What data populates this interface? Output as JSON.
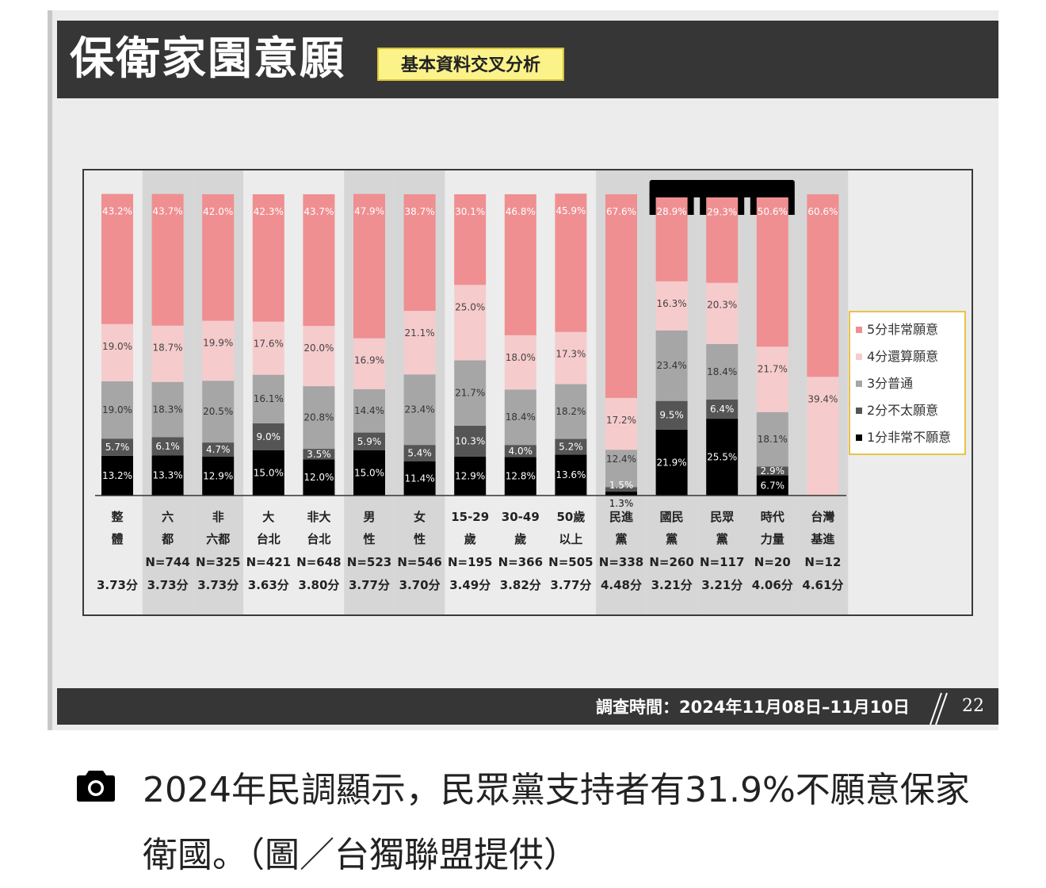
{
  "slide": {
    "title": "保衛家園意願",
    "subtitle": "基本資料交叉分析",
    "footer_text": "調查時間：2024年11月08日–11月10日",
    "page_number": "22"
  },
  "caption": {
    "text": "2024年民調顯示，民眾黨支持者有31.9%不願意保家衛國。（圖／台獨聯盟提供）",
    "icon": "camera-icon"
  },
  "chart_data": {
    "type": "bar",
    "stacked": true,
    "percent": true,
    "categories": [
      [
        "整",
        "體"
      ],
      [
        "六",
        "都"
      ],
      [
        "非",
        "六都"
      ],
      [
        "大",
        "台北"
      ],
      [
        "非大",
        "台北"
      ],
      [
        "男",
        "性"
      ],
      [
        "女",
        "性"
      ],
      [
        "15-29",
        "歲"
      ],
      [
        "30-49",
        "歲"
      ],
      [
        "50歲",
        "以上"
      ],
      [
        "民進",
        "黨"
      ],
      [
        "國民",
        "黨"
      ],
      [
        "民眾",
        "黨"
      ],
      [
        "時代",
        "力量"
      ],
      [
        "台灣",
        "基進"
      ]
    ],
    "n_labels": [
      "",
      "N=744",
      "N=325",
      "N=421",
      "N=648",
      "N=523",
      "N=546",
      "N=195",
      "N=366",
      "N=505",
      "N=338",
      "N=260",
      "N=117",
      "N=20",
      "N=12"
    ],
    "scores": [
      "3.73分",
      "3.73分",
      "3.73分",
      "3.63分",
      "3.80分",
      "3.77分",
      "3.70分",
      "3.49分",
      "3.82分",
      "3.77分",
      "4.48分",
      "3.21分",
      "3.21分",
      "4.06分",
      "4.61分"
    ],
    "series": [
      {
        "name": "1分非常不願意",
        "color": "#000000",
        "values": [
          13.2,
          13.3,
          12.9,
          15.0,
          12.0,
          15.0,
          11.4,
          12.9,
          12.8,
          13.6,
          1.3,
          21.9,
          25.5,
          6.7,
          0
        ],
        "labels": [
          "13.2%",
          "13.3%",
          "12.9%",
          "15.0%",
          "12.0%",
          "15.0%",
          "11.4%",
          "12.9%",
          "12.8%",
          "13.6%",
          "1.3%",
          "21.9%",
          "25.5%",
          "6.7%",
          ""
        ]
      },
      {
        "name": "2分不太願意",
        "color": "#555555",
        "values": [
          5.7,
          6.1,
          4.7,
          9.0,
          3.5,
          5.9,
          5.4,
          10.3,
          4.0,
          5.2,
          1.5,
          9.5,
          6.4,
          2.9,
          0
        ],
        "labels": [
          "5.7%",
          "6.1%",
          "4.7%",
          "9.0%",
          "3.5%",
          "5.9%",
          "5.4%",
          "10.3%",
          "4.0%",
          "5.2%",
          "1.5%",
          "9.5%",
          "6.4%",
          "2.9%",
          ""
        ]
      },
      {
        "name": "3分普通",
        "color": "#a6a6a6",
        "values": [
          19.0,
          18.3,
          20.5,
          16.1,
          20.8,
          14.4,
          23.4,
          21.7,
          18.4,
          18.2,
          12.4,
          23.4,
          18.4,
          18.1,
          0
        ],
        "labels": [
          "19.0%",
          "18.3%",
          "20.5%",
          "16.1%",
          "20.8%",
          "14.4%",
          "23.4%",
          "21.7%",
          "18.4%",
          "18.2%",
          "12.4%",
          "23.4%",
          "18.4%",
          "18.1%",
          ""
        ]
      },
      {
        "name": "4分還算願意",
        "color": "#f6cbcc",
        "values": [
          19.0,
          18.7,
          19.9,
          17.6,
          20.0,
          16.9,
          21.1,
          25.0,
          18.0,
          17.3,
          17.2,
          16.3,
          20.3,
          21.7,
          39.4
        ],
        "labels": [
          "19.0%",
          "18.7%",
          "19.9%",
          "17.6%",
          "20.0%",
          "16.9%",
          "21.1%",
          "25.0%",
          "18.0%",
          "17.3%",
          "17.2%",
          "16.3%",
          "20.3%",
          "21.7%",
          "39.4%"
        ]
      },
      {
        "name": "5分非常願意",
        "color": "#ef8f91",
        "values": [
          43.2,
          43.7,
          42.0,
          42.3,
          43.7,
          47.9,
          38.7,
          30.1,
          46.8,
          45.9,
          67.6,
          28.9,
          29.3,
          50.6,
          60.6
        ],
        "labels": [
          "43.2%",
          "43.7%",
          "42.0%",
          "42.3%",
          "43.7%",
          "47.9%",
          "38.7%",
          "30.1%",
          "46.8%",
          "45.9%",
          "67.6%",
          "28.9%",
          "29.3%",
          "50.6%",
          "60.6%"
        ]
      }
    ],
    "legend": {
      "placement": "right",
      "order": [
        "5分非常願意",
        "4分還算願意",
        "3分普通",
        "2分不太願意",
        "1分非常不願意"
      ],
      "border_color": "#e8c24a"
    },
    "shaded_groups": [
      1,
      2,
      5,
      6,
      10,
      11,
      12,
      13,
      14
    ],
    "highlight_bracket": [
      11,
      12,
      13
    ],
    "ylim": [
      0,
      100
    ]
  }
}
